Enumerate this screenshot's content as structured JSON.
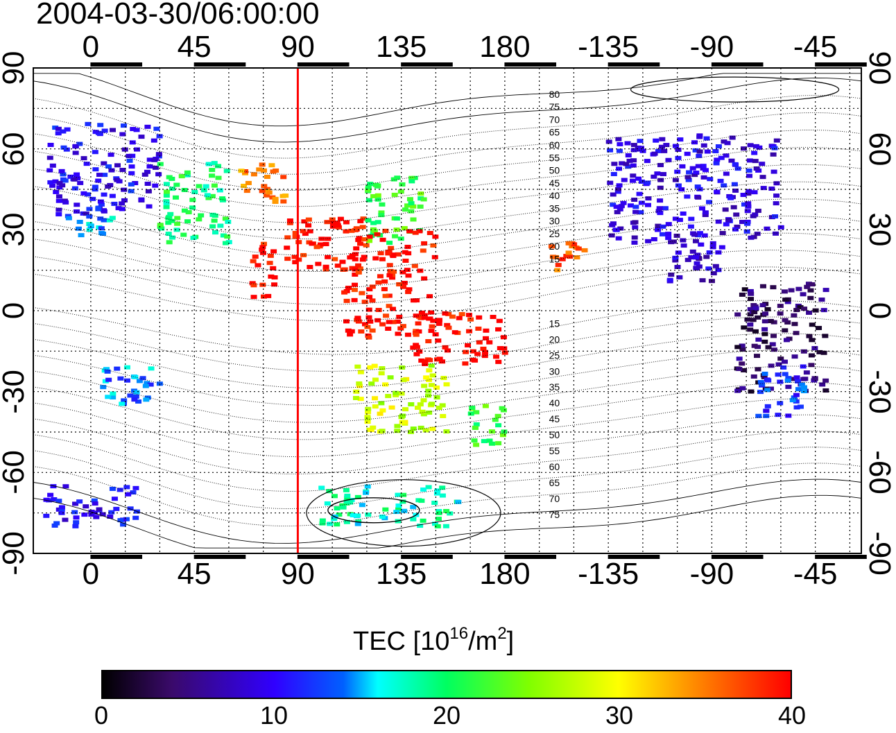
{
  "title": "2004-03-30/06:00:00",
  "map": {
    "lon_ticks_top": [
      "0",
      "45",
      "90",
      "135",
      "180",
      "-135",
      "-90",
      "-45"
    ],
    "lon_ticks_bottom": [
      "0",
      "45",
      "90",
      "135",
      "180",
      "-135",
      "-90",
      "-45"
    ],
    "lat_ticks_left": [
      "90",
      "60",
      "30",
      "0",
      "-30",
      "-60",
      "-90"
    ],
    "lat_ticks_right": [
      "90",
      "60",
      "30",
      "0",
      "-30",
      "-60",
      "-90"
    ],
    "lon_range": [
      -25,
      335
    ],
    "lat_range": [
      -90,
      90
    ],
    "grid": "dotted",
    "terminator_longitude": 90,
    "terminator_color": "#ff0000",
    "contour_labels_north": [
      "80",
      "75",
      "70",
      "65",
      "60",
      "55",
      "50",
      "45",
      "40",
      "35",
      "30",
      "25",
      "20",
      "15"
    ],
    "contour_labels_south": [
      "15",
      "20",
      "25",
      "30",
      "35",
      "40",
      "45",
      "50",
      "55",
      "60",
      "65",
      "70",
      "75"
    ]
  },
  "legend": {
    "title_prefix": "TEC  [10",
    "title_exp": "16",
    "title_mid": "/m",
    "title_exp2": "2",
    "title_suffix": "]",
    "ticks": [
      "0",
      "10",
      "20",
      "30",
      "40"
    ],
    "range": [
      0,
      40
    ],
    "colors": [
      "#000000",
      "#3000ff",
      "#00ffff",
      "#00ff60",
      "#ffff00",
      "#ff0000"
    ]
  },
  "chart_data": {
    "type": "heatmap",
    "title": "2004-03-30/06:00:00",
    "variable": "TEC",
    "unit": "10^16/m^2",
    "scale": [
      0,
      40
    ],
    "regions": [
      {
        "lon": [
          -18,
          30
        ],
        "lat": [
          35,
          70
        ],
        "tec": 10
      },
      {
        "lon": [
          -10,
          10
        ],
        "lat": [
          28,
          36
        ],
        "tec": 15
      },
      {
        "lon": [
          30,
          60
        ],
        "lat": [
          25,
          55
        ],
        "tec": 20
      },
      {
        "lon": [
          65,
          85
        ],
        "lat": [
          40,
          55
        ],
        "tec": 35
      },
      {
        "lon": [
          85,
          100
        ],
        "lat": [
          15,
          35
        ],
        "tec": 40
      },
      {
        "lon": [
          70,
          80
        ],
        "lat": [
          5,
          25
        ],
        "tec": 40
      },
      {
        "lon": [
          100,
          120
        ],
        "lat": [
          15,
          35
        ],
        "tec": 40
      },
      {
        "lon": [
          120,
          145
        ],
        "lat": [
          25,
          50
        ],
        "tec": 22
      },
      {
        "lon": [
          110,
          150
        ],
        "lat": [
          -10,
          30
        ],
        "tec": 40
      },
      {
        "lon": [
          140,
          180
        ],
        "lat": [
          -20,
          0
        ],
        "tec": 40
      },
      {
        "lon": [
          115,
          155
        ],
        "lat": [
          -45,
          -20
        ],
        "tec": 28
      },
      {
        "lon": [
          165,
          180
        ],
        "lat": [
          -50,
          -35
        ],
        "tec": 22
      },
      {
        "lon": [
          200,
          215
        ],
        "lat": [
          15,
          25
        ],
        "tec": 37
      },
      {
        "lon": [
          225,
          300
        ],
        "lat": [
          25,
          65
        ],
        "tec": 9
      },
      {
        "lon": [
          250,
          275
        ],
        "lat": [
          10,
          30
        ],
        "tec": 8
      },
      {
        "lon": [
          280,
          320
        ],
        "lat": [
          -30,
          10
        ],
        "tec": 4
      },
      {
        "lon": [
          290,
          310
        ],
        "lat": [
          -40,
          -20
        ],
        "tec": 12
      },
      {
        "lon": [
          5,
          30
        ],
        "lat": [
          -35,
          -20
        ],
        "tec": 14
      },
      {
        "lon": [
          -20,
          20
        ],
        "lat": [
          -80,
          -65
        ],
        "tec": 10
      },
      {
        "lon": [
          100,
          160
        ],
        "lat": [
          -80,
          -65
        ],
        "tec": 18
      }
    ]
  }
}
